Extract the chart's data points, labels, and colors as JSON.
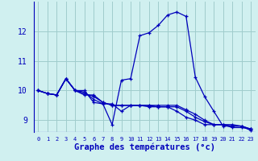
{
  "title": "Graphe des températures (°c)",
  "bg_color": "#d0f0f0",
  "grid_color": "#a0cccc",
  "line_color": "#0000bb",
  "xlim": [
    -0.5,
    23.5
  ],
  "ylim": [
    8.6,
    13.0
  ],
  "yticks": [
    9,
    10,
    11,
    12
  ],
  "xticks": [
    0,
    1,
    2,
    3,
    4,
    5,
    6,
    7,
    8,
    9,
    10,
    11,
    12,
    13,
    14,
    15,
    16,
    17,
    18,
    19,
    20,
    21,
    22,
    23
  ],
  "series": [
    [
      10.0,
      9.9,
      9.85,
      10.4,
      10.0,
      10.0,
      9.6,
      9.55,
      9.55,
      9.3,
      9.5,
      9.5,
      9.45,
      9.45,
      9.45,
      9.3,
      9.1,
      9.0,
      8.85,
      8.85,
      8.85,
      8.75,
      8.75,
      8.7
    ],
    [
      10.0,
      9.9,
      9.85,
      10.4,
      10.0,
      9.95,
      9.7,
      9.55,
      8.85,
      10.35,
      10.4,
      11.85,
      11.95,
      12.2,
      12.55,
      12.65,
      12.5,
      10.45,
      9.8,
      9.3,
      8.8,
      8.8,
      8.8,
      8.65
    ],
    [
      10.0,
      9.9,
      9.85,
      10.4,
      10.0,
      9.85,
      9.85,
      9.6,
      9.5,
      9.5,
      9.5,
      9.5,
      9.5,
      9.45,
      9.45,
      9.45,
      9.3,
      9.1,
      8.95,
      8.85,
      8.85,
      8.8,
      8.8,
      8.7
    ],
    [
      10.0,
      9.9,
      9.85,
      10.4,
      10.0,
      9.9,
      9.8,
      9.6,
      9.5,
      9.5,
      9.5,
      9.5,
      9.5,
      9.5,
      9.5,
      9.5,
      9.35,
      9.2,
      9.0,
      8.85,
      8.85,
      8.85,
      8.8,
      8.7
    ]
  ],
  "xlabel_fontsize": 7.5,
  "xtick_fontsize": 5.0,
  "ytick_fontsize": 7.0,
  "linewidth": 0.9,
  "markersize": 3.5
}
